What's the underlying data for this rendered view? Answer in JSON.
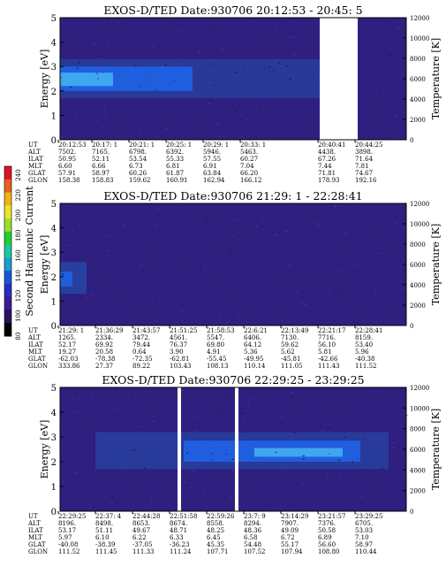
{
  "colors": {
    "plot_bg": "#2f1f7f",
    "band_mid": "#1f5fdf",
    "band_core": "#3fa7ef",
    "band_edge": "#27409f",
    "gap": "#ffffff"
  },
  "colorbar": {
    "label": "Second Harmonic Current",
    "ticks": [
      "240",
      "220",
      "200",
      "180",
      "160",
      "140",
      "120",
      "100",
      "80"
    ],
    "colors": [
      "#e0102a",
      "#e8621a",
      "#f0b21c",
      "#e9e62a",
      "#9adf2a",
      "#1fd02f",
      "#1cc89e",
      "#1e9ed3",
      "#1a55d6",
      "#2a2dbf",
      "#3b1c95",
      "#2a1360",
      "#000000"
    ]
  },
  "chart_data": [
    {
      "type": "heatmap",
      "title": "EXOS-D/TED   Date:930706  20:12:53 - 20:45: 5",
      "ylabel": "Energy [eV]",
      "ylabel_right": "Temperature [K]",
      "ylim": [
        0,
        5
      ],
      "ylim_right": [
        0,
        12000
      ],
      "yticks": [
        "0",
        "1",
        "2",
        "3",
        "4",
        "5"
      ],
      "yticks_right": [
        "0",
        "2000",
        "4000",
        "6000",
        "8000",
        "10000",
        "12000"
      ],
      "row_labels": [
        "UT",
        "ALT",
        "ILAT",
        "MLT",
        "GLAT",
        "GLON"
      ],
      "columns": [
        {
          "ut": "20:12:53",
          "alt": "7502.",
          "ilat": "50.95",
          "mlt": "6.60",
          "glat": "57.91",
          "glon": "158.38"
        },
        {
          "ut": "20:17: 1",
          "alt": "7165.",
          "ilat": "52.11",
          "mlt": "6.66",
          "glat": "58.97",
          "glon": "158.83"
        },
        {
          "ut": "20:21: 1",
          "alt": "6798.",
          "ilat": "53.54",
          "mlt": "6.73",
          "glat": "60.26",
          "glon": "159.62"
        },
        {
          "ut": "20:25: 1",
          "alt": "6392.",
          "ilat": "55.33",
          "mlt": "6.81",
          "glat": "61.87",
          "glon": "160.91"
        },
        {
          "ut": "20:29: 1",
          "alt": "5946.",
          "ilat": "57.55",
          "mlt": "6.91",
          "glat": "63.84",
          "glon": "162.94"
        },
        {
          "ut": "20:33: 1",
          "alt": "5463.",
          "ilat": "60.27",
          "mlt": "7.04",
          "glat": "66.20",
          "glon": "166.12"
        },
        {
          "ut": "20:40:41",
          "alt": "4438.",
          "ilat": "67.26",
          "mlt": "7.44",
          "glat": "71.81",
          "glon": "178.93"
        },
        {
          "ut": "20:44:25",
          "alt": "3898.",
          "ilat": "71.64",
          "mlt": "7.81",
          "glat": "74.67",
          "glon": "192.16"
        }
      ]
    },
    {
      "type": "heatmap",
      "title": "EXOS-D/TED   Date:930706  21:29: 1 - 22:28:41",
      "ylabel": "Energy [eV]",
      "ylabel_right": "Temperature [K]",
      "ylim": [
        0,
        5
      ],
      "ylim_right": [
        0,
        12000
      ],
      "yticks": [
        "0",
        "1",
        "2",
        "3",
        "4",
        "5"
      ],
      "yticks_right": [
        "0",
        "2000",
        "4000",
        "6000",
        "8000",
        "10000",
        "12000"
      ],
      "row_labels": [
        "UT",
        "ALT",
        "ILAT",
        "MLT",
        "GLAT",
        "GLON"
      ],
      "columns": [
        {
          "ut": "21:29: 1",
          "alt": "1265.",
          "ilat": "52.17",
          "mlt": "19.27",
          "glat": "-62.03",
          "glon": "333.86"
        },
        {
          "ut": "21:36:29",
          "alt": "2334.",
          "ilat": "69.92",
          "mlt": "20.58",
          "glat": "-78.38",
          "glon": "27.37"
        },
        {
          "ut": "21:43:57",
          "alt": "3472.",
          "ilat": "79.44",
          "mlt": "0.64",
          "glat": "-72.35",
          "glon": "89.22"
        },
        {
          "ut": "21:51:25",
          "alt": "4561.",
          "ilat": "76.37",
          "mlt": "3.90",
          "glat": "-62.81",
          "glon": "103.43"
        },
        {
          "ut": "21:58:53",
          "alt": "5547.",
          "ilat": "69.80",
          "mlt": "4.91",
          "glat": "-55.45",
          "glon": "108.13"
        },
        {
          "ut": "22:6:21",
          "alt": "6406.",
          "ilat": "64.12",
          "mlt": "5.36",
          "glat": "-49.95",
          "glon": "110.14"
        },
        {
          "ut": "22:13:49",
          "alt": "7130.",
          "ilat": "59.62",
          "mlt": "5.62",
          "glat": "-45.81",
          "glon": "111.05"
        },
        {
          "ut": "22:21:17",
          "alt": "7716.",
          "ilat": "56.10",
          "mlt": "5.81",
          "glat": "-42.66",
          "glon": "111.43"
        },
        {
          "ut": "22:28:41",
          "alt": "8159.",
          "ilat": "53.40",
          "mlt": "5.96",
          "glat": "-40.38",
          "glon": "111.52"
        }
      ]
    },
    {
      "type": "heatmap",
      "title": "EXOS-D/TED   Date:930706  22:29:25 - 23:29:25",
      "ylabel": "Energy [eV]",
      "ylabel_right": "Temperature [K]",
      "ylim": [
        0,
        5
      ],
      "ylim_right": [
        0,
        12000
      ],
      "yticks": [
        "0",
        "1",
        "2",
        "3",
        "4",
        "5"
      ],
      "yticks_right": [
        "0",
        "2000",
        "4000",
        "6000",
        "8000",
        "10000",
        "12000"
      ],
      "row_labels": [
        "UT",
        "ALT",
        "ILAT",
        "MLT",
        "GLAT",
        "GLON"
      ],
      "columns": [
        {
          "ut": "22:29:25",
          "alt": "8196.",
          "ilat": "53.17",
          "mlt": "5.97",
          "glat": "-40.08",
          "glon": "111.52"
        },
        {
          "ut": "22:37: 4",
          "alt": "8498.",
          "ilat": "51.11",
          "mlt": "6.10",
          "glat": "-38.39",
          "glon": "111.45"
        },
        {
          "ut": "22:44:28",
          "alt": "8653.",
          "ilat": "49.67",
          "mlt": "6.22",
          "glat": "-37.05",
          "glon": "111.33"
        },
        {
          "ut": "22:51:58",
          "alt": "8674.",
          "ilat": "48.71",
          "mlt": "6.33",
          "glat": "-36.23",
          "glon": "111.24"
        },
        {
          "ut": "22:59:26",
          "alt": "8558.",
          "ilat": "48.25",
          "mlt": "6.45",
          "glat": "45.35",
          "glon": "107.71"
        },
        {
          "ut": "23:7: 9",
          "alt": "8294.",
          "ilat": "48.36",
          "mlt": "6.58",
          "glat": "54.48",
          "glon": "107.52"
        },
        {
          "ut": "23:14:29",
          "alt": "7907.",
          "ilat": "49.09",
          "mlt": "6.72",
          "glat": "55.17",
          "glon": "107.94"
        },
        {
          "ut": "23:21:57",
          "alt": "7376.",
          "ilat": "50.58",
          "mlt": "6.89",
          "glat": "56.60",
          "glon": "108.80"
        },
        {
          "ut": "23:29:25",
          "alt": "6705.",
          "ilat": "53.03",
          "mlt": "7.10",
          "glat": "58.97",
          "glon": "110.44"
        }
      ]
    }
  ]
}
